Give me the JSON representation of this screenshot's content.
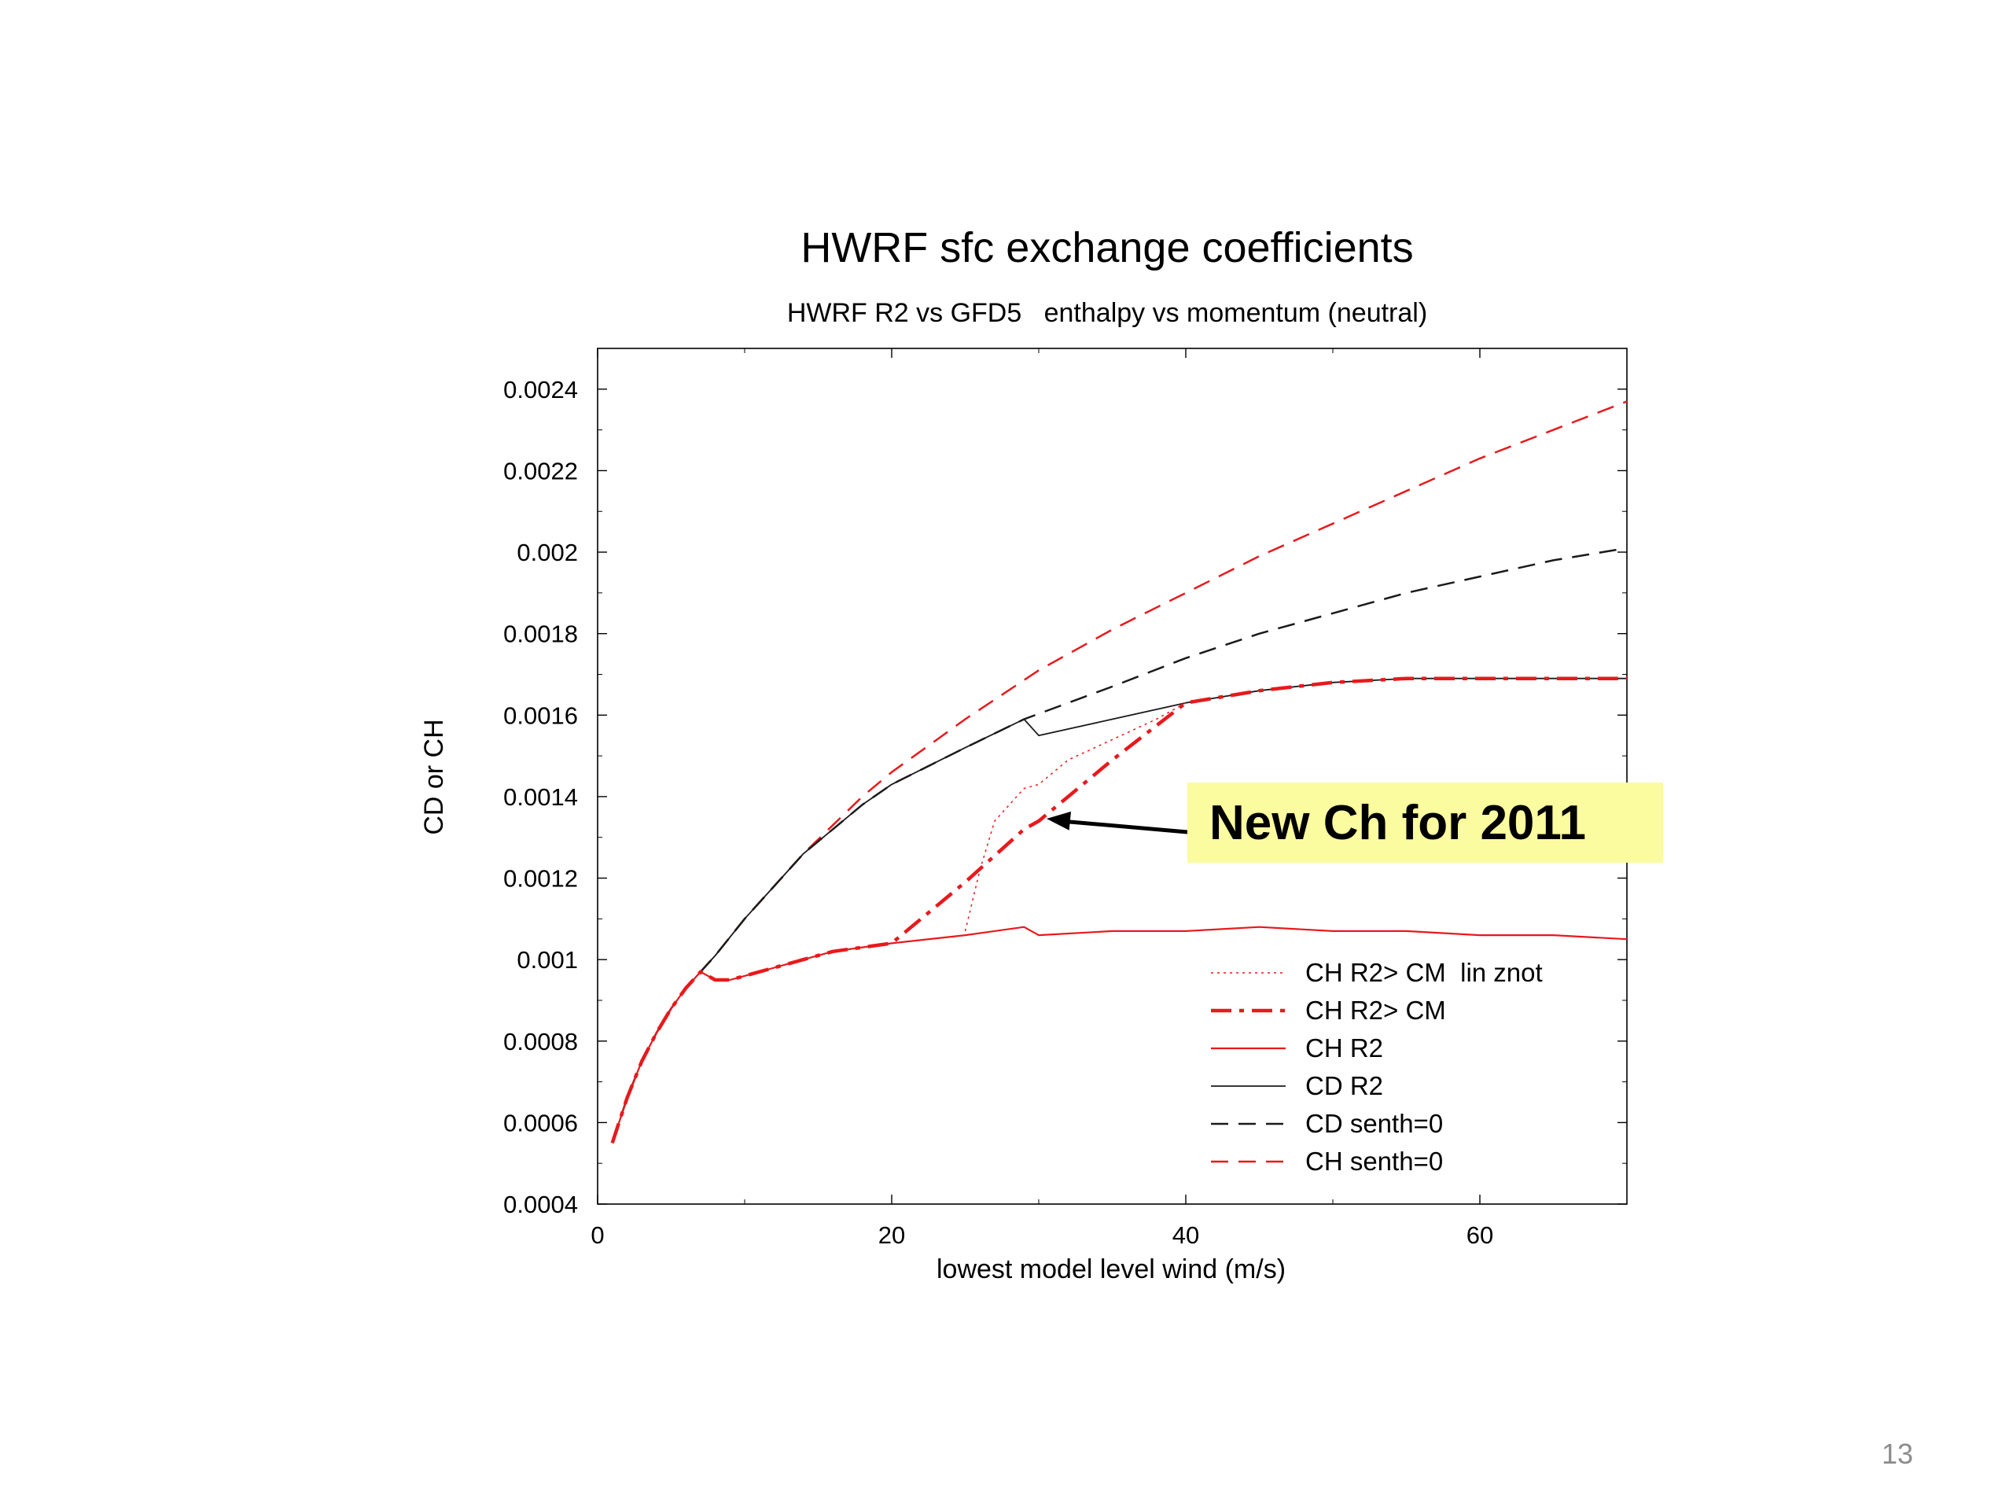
{
  "slide": {
    "page_number": "13"
  },
  "annotation": {
    "text": "New Ch for 2011",
    "points_to_x": 30,
    "points_to_y": 0.00134
  },
  "colors": {
    "red": "#e8191c",
    "black": "#1a1a1a",
    "annotation_bg": "#fbfb9f"
  },
  "chart_data": {
    "type": "line",
    "title": "HWRF sfc exchange coefficients",
    "subtitle": "HWRF R2 vs GFD5   enthalpy vs momentum (neutral)",
    "xlabel": "lowest model level wind (m/s)",
    "ylabel": "CD or CH",
    "xlim": [
      0,
      70
    ],
    "ylim": [
      0.0004,
      0.0025
    ],
    "x_ticks": [
      0,
      20,
      40,
      60
    ],
    "x_tick_labels": [
      "0",
      "20",
      "40",
      "60"
    ],
    "y_ticks": [
      0.0004,
      0.0006,
      0.0008,
      0.001,
      0.0012,
      0.0014,
      0.0016,
      0.0018,
      0.002,
      0.0022,
      0.0024
    ],
    "y_tick_labels": [
      "0.0004",
      "0.0006",
      "0.0008",
      "0.001",
      "0.0012",
      "0.0014",
      "0.0016",
      "0.0018",
      "0.002",
      "0.0022",
      "0.0024"
    ],
    "grid": false,
    "legend_position": "bottom-right",
    "series": [
      {
        "name": "CH senth=0",
        "color": "#e8191c",
        "dash": "long-dash",
        "width": 2.5,
        "x": [
          1,
          2,
          3,
          4,
          5,
          6,
          7,
          8,
          10,
          12,
          14,
          16,
          18,
          20,
          25,
          30,
          35,
          40,
          45,
          50,
          55,
          60,
          65,
          70
        ],
        "y": [
          0.00055,
          0.00066,
          0.00075,
          0.00082,
          0.00088,
          0.00093,
          0.00097,
          0.00101,
          0.0011,
          0.00118,
          0.00126,
          0.00133,
          0.0014,
          0.00146,
          0.00159,
          0.00171,
          0.00181,
          0.0019,
          0.00199,
          0.00207,
          0.00215,
          0.00223,
          0.0023,
          0.00237
        ]
      },
      {
        "name": "CD senth=0",
        "color": "#1a1a1a",
        "dash": "long-dash",
        "width": 2.5,
        "x": [
          1,
          2,
          3,
          4,
          5,
          6,
          7,
          8,
          10,
          12,
          14,
          16,
          18,
          20,
          25,
          29,
          35,
          40,
          45,
          50,
          55,
          60,
          65,
          70
        ],
        "y": [
          0.00055,
          0.00066,
          0.00075,
          0.00082,
          0.00088,
          0.00093,
          0.00097,
          0.00101,
          0.0011,
          0.00118,
          0.00126,
          0.00132,
          0.00138,
          0.00143,
          0.00152,
          0.00159,
          0.00167,
          0.00174,
          0.0018,
          0.00185,
          0.0019,
          0.00194,
          0.00198,
          0.00201
        ]
      },
      {
        "name": "CD R2",
        "color": "#1a1a1a",
        "dash": "solid",
        "width": 1.8,
        "x": [
          1,
          2,
          3,
          4,
          5,
          6,
          7,
          8,
          10,
          12,
          14,
          16,
          18,
          20,
          25,
          29,
          30,
          35,
          40,
          45,
          50,
          55,
          60,
          65,
          70
        ],
        "y": [
          0.00055,
          0.00066,
          0.00075,
          0.00082,
          0.00088,
          0.00093,
          0.00097,
          0.00101,
          0.0011,
          0.00118,
          0.00126,
          0.00132,
          0.00138,
          0.00143,
          0.00152,
          0.00159,
          0.00155,
          0.00159,
          0.00163,
          0.00166,
          0.00168,
          0.00169,
          0.00169,
          0.00169,
          0.00169
        ]
      },
      {
        "name": "CH R2",
        "color": "#e8191c",
        "dash": "solid",
        "width": 2.2,
        "x": [
          1,
          2,
          3,
          4,
          5,
          6,
          7,
          8,
          9,
          10,
          12,
          14,
          16,
          18,
          20,
          25,
          29,
          30,
          35,
          40,
          45,
          50,
          55,
          60,
          65,
          70
        ],
        "y": [
          0.00055,
          0.00066,
          0.00075,
          0.00082,
          0.00088,
          0.00093,
          0.00097,
          0.00095,
          0.00095,
          0.00096,
          0.00098,
          0.001,
          0.00102,
          0.00103,
          0.00104,
          0.00106,
          0.00108,
          0.00106,
          0.00107,
          0.00107,
          0.00108,
          0.00107,
          0.00107,
          0.00106,
          0.00106,
          0.00105
        ]
      },
      {
        "name": "CH R2> CM",
        "color": "#e8191c",
        "dash": "dash-dot",
        "width": 4.5,
        "x": [
          1,
          2,
          3,
          4,
          5,
          6,
          7,
          8,
          9,
          10,
          12,
          14,
          16,
          18,
          20,
          25,
          29,
          30,
          35,
          40,
          45,
          50,
          55,
          60,
          65,
          70
        ],
        "y": [
          0.00055,
          0.00066,
          0.00075,
          0.00082,
          0.00088,
          0.00093,
          0.00097,
          0.00095,
          0.00095,
          0.00096,
          0.00098,
          0.001,
          0.00102,
          0.00103,
          0.00104,
          0.00119,
          0.00132,
          0.00134,
          0.00149,
          0.00163,
          0.00166,
          0.00168,
          0.00169,
          0.00169,
          0.00169,
          0.00169
        ]
      },
      {
        "name": "CH R2> CM  lin znot",
        "color": "#e8191c",
        "dash": "dotted",
        "width": 1.5,
        "x": [
          25,
          26,
          27,
          29,
          30,
          32,
          35,
          38,
          40
        ],
        "y": [
          0.00107,
          0.00122,
          0.00134,
          0.00142,
          0.00143,
          0.00149,
          0.00154,
          0.00159,
          0.00163
        ]
      }
    ],
    "legend_order": [
      "CH R2> CM  lin znot",
      "CH R2> CM",
      "CH R2",
      "CD R2",
      "CD senth=0",
      "CH senth=0"
    ]
  }
}
